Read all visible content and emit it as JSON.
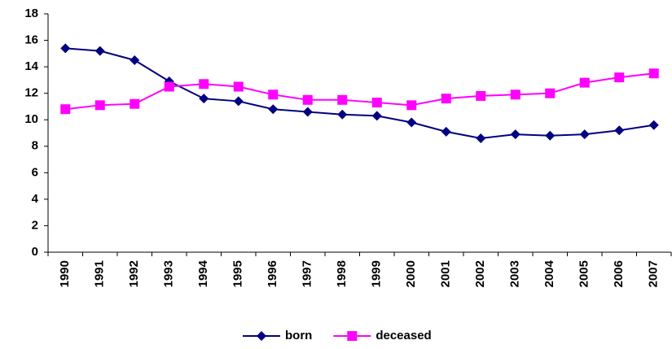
{
  "chart_data": {
    "type": "line",
    "categories": [
      "1990",
      "1991",
      "1992",
      "1993",
      "1994",
      "1995",
      "1996",
      "1997",
      "1998",
      "1999",
      "2000",
      "2001",
      "2002",
      "2003",
      "2004",
      "2005",
      "2006",
      "2007"
    ],
    "series": [
      {
        "name": "born",
        "color": "#000080",
        "marker": "diamond",
        "values": [
          15.4,
          15.2,
          14.5,
          12.9,
          11.6,
          11.4,
          10.8,
          10.6,
          10.4,
          10.3,
          9.8,
          9.1,
          8.6,
          8.9,
          8.8,
          8.9,
          9.2,
          9.6
        ]
      },
      {
        "name": "deceased",
        "color": "#ff00ff",
        "marker": "square",
        "values": [
          10.8,
          11.1,
          11.2,
          12.5,
          12.7,
          12.5,
          11.9,
          11.5,
          11.5,
          11.3,
          11.1,
          11.6,
          11.8,
          11.9,
          12.0,
          12.8,
          13.2,
          13.5
        ]
      }
    ],
    "ylim": [
      0,
      18
    ],
    "yticks": [
      0,
      2,
      4,
      6,
      8,
      10,
      12,
      14,
      16,
      18
    ],
    "grid": false,
    "legend": "bottom"
  }
}
